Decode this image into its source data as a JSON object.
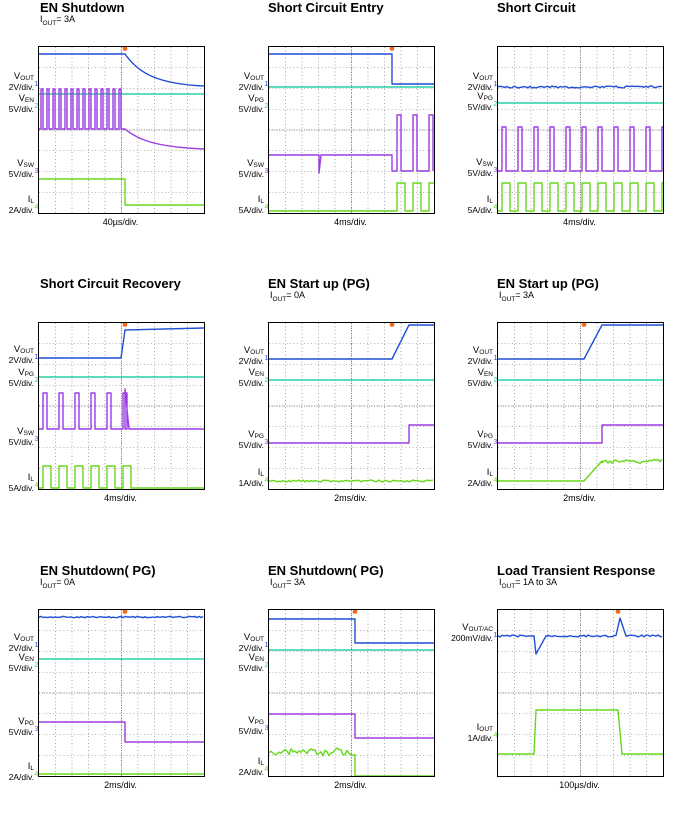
{
  "colors": {
    "ch1": "#1f4fd6",
    "ch2": "#28d0a8",
    "ch3": "#9b3be0",
    "ch4": "#66d81a",
    "trigger": "#f26a1b",
    "grid": "#6b6b6b"
  },
  "chart_data": [
    {
      "type": "line",
      "title": "EN Shutdown",
      "condition": "I_OUT= 3A",
      "xlabel": "40µs/div.",
      "channels": [
        {
          "name": "VOUT",
          "scale": "2V/div.",
          "marker": "1",
          "color": "ch1"
        },
        {
          "name": "VEN",
          "scale": "5V/div.",
          "marker": "2",
          "color": "ch2"
        },
        {
          "name": "VSW",
          "scale": "5V/div.",
          "marker": "3",
          "color": "ch3"
        },
        {
          "name": "IL",
          "scale": "2A/div.",
          "marker": "4",
          "color": "ch4"
        }
      ]
    },
    {
      "type": "line",
      "title": "Short Circuit Entry",
      "condition": "",
      "xlabel": "4ms/div.",
      "channels": [
        {
          "name": "VOUT",
          "scale": "2V/div.",
          "marker": "1",
          "color": "ch1"
        },
        {
          "name": "VPG",
          "scale": "5V/div.",
          "marker": "2",
          "color": "ch2"
        },
        {
          "name": "VSW",
          "scale": "5V/div.",
          "marker": "3",
          "color": "ch3"
        },
        {
          "name": "IL",
          "scale": "5A/div.",
          "marker": "4",
          "color": "ch4"
        }
      ]
    },
    {
      "type": "line",
      "title": "Short Circuit",
      "condition": "",
      "xlabel": "4ms/div.",
      "channels": [
        {
          "name": "VOUT",
          "scale": "2V/div.",
          "marker": "1",
          "color": "ch1"
        },
        {
          "name": "VPG",
          "scale": "5V/div.",
          "marker": "2",
          "color": "ch2"
        },
        {
          "name": "VSW",
          "scale": "5V/div.",
          "marker": "3",
          "color": "ch3"
        },
        {
          "name": "IL",
          "scale": "5A/div.",
          "marker": "4",
          "color": "ch4"
        }
      ]
    },
    {
      "type": "line",
      "title": "Short Circuit Recovery",
      "condition": "",
      "xlabel": "4ms/div.",
      "channels": [
        {
          "name": "VOUT",
          "scale": "2V/div.",
          "marker": "1",
          "color": "ch1"
        },
        {
          "name": "VPG",
          "scale": "5V/div.",
          "marker": "2",
          "color": "ch2"
        },
        {
          "name": "VSW",
          "scale": "5V/div.",
          "marker": "3",
          "color": "ch3"
        },
        {
          "name": "IL",
          "scale": "5A/div.",
          "marker": "4",
          "color": "ch4"
        }
      ]
    },
    {
      "type": "line",
      "title": "EN Start up (PG)",
      "condition": "I_OUT= 0A",
      "xlabel": "2ms/div.",
      "channels": [
        {
          "name": "VOUT",
          "scale": "2V/div.",
          "marker": "1",
          "color": "ch1"
        },
        {
          "name": "VEN",
          "scale": "5V/div.",
          "marker": "2",
          "color": "ch2"
        },
        {
          "name": "VPG",
          "scale": "5V/div.",
          "marker": "3",
          "color": "ch3"
        },
        {
          "name": "IL",
          "scale": "1A/div.",
          "marker": "4",
          "color": "ch4"
        }
      ]
    },
    {
      "type": "line",
      "title": "EN Start up (PG)",
      "condition": "I_OUT= 3A",
      "xlabel": "2ms/div.",
      "channels": [
        {
          "name": "VOUT",
          "scale": "2V/div.",
          "marker": "1",
          "color": "ch1"
        },
        {
          "name": "VEN",
          "scale": "5V/div.",
          "marker": "2",
          "color": "ch2"
        },
        {
          "name": "VPG",
          "scale": "5V/div.",
          "marker": "3",
          "color": "ch3"
        },
        {
          "name": "IL",
          "scale": "2A/div.",
          "marker": "4",
          "color": "ch4"
        }
      ]
    },
    {
      "type": "line",
      "title": "EN Shutdown( PG)",
      "condition": "I_OUT= 0A",
      "xlabel": "2ms/div.",
      "channels": [
        {
          "name": "VOUT",
          "scale": "2V/div.",
          "marker": "1",
          "color": "ch1"
        },
        {
          "name": "VEN",
          "scale": "5V/div.",
          "marker": "2",
          "color": "ch2"
        },
        {
          "name": "VPG",
          "scale": "5V/div.",
          "marker": "3",
          "color": "ch3"
        },
        {
          "name": "IL",
          "scale": "2A/div.",
          "marker": "4",
          "color": "ch4"
        }
      ]
    },
    {
      "type": "line",
      "title": "EN Shutdown( PG)",
      "condition": "I_OUT= 3A",
      "xlabel": "2ms/div.",
      "channels": [
        {
          "name": "VOUT",
          "scale": "2V/div.",
          "marker": "1",
          "color": "ch1"
        },
        {
          "name": "VEN",
          "scale": "5V/div.",
          "marker": "2",
          "color": "ch2"
        },
        {
          "name": "VPG",
          "scale": "5V/div.",
          "marker": "3",
          "color": "ch3"
        },
        {
          "name": "IL",
          "scale": "2A/div.",
          "marker": "4",
          "color": "ch4"
        }
      ]
    },
    {
      "type": "line",
      "title": "Load Transient Response",
      "condition": "I_OUT= 1A to 3A",
      "xlabel": "100µs/div.",
      "channels": [
        {
          "name": "VOUT/AC",
          "scale": "200mV/div.",
          "marker": "1",
          "color": "ch1"
        },
        {
          "name": "IOUT",
          "scale": "1A/div.",
          "marker": "4",
          "color": "ch4"
        }
      ]
    }
  ]
}
